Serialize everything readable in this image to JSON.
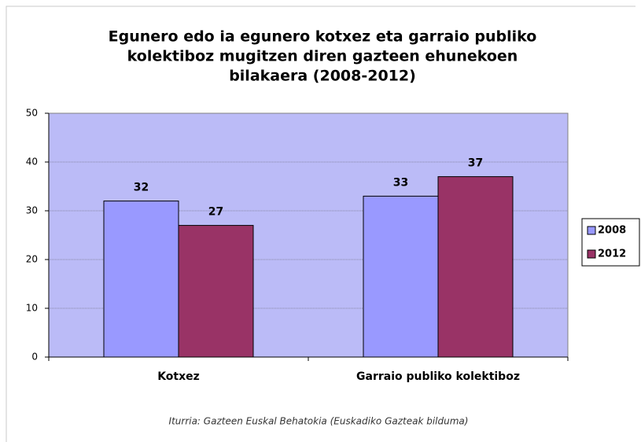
{
  "chart_data": {
    "type": "bar",
    "title": [
      "Egunero edo ia egunero kotxez eta garraio publiko",
      "kolektiboz mugitzen diren gazteen ehunekoen",
      "bilakaera  (2008-2012)"
    ],
    "categories": [
      "Kotxez",
      "Garraio publiko kolektiboz"
    ],
    "series": [
      {
        "name": "2008",
        "color": "#9999ff",
        "values": [
          32,
          33
        ]
      },
      {
        "name": "2012",
        "color": "#993366",
        "values": [
          27,
          37
        ]
      }
    ],
    "ylim": [
      0,
      50
    ],
    "yticks": [
      0,
      10,
      20,
      30,
      40,
      50
    ],
    "grid": true,
    "plot_background": "#bbbbf7",
    "legend": "right",
    "source": "Iturria: Gazteen Euskal Behatokia (Euskadiko Gazteak bilduma)"
  }
}
